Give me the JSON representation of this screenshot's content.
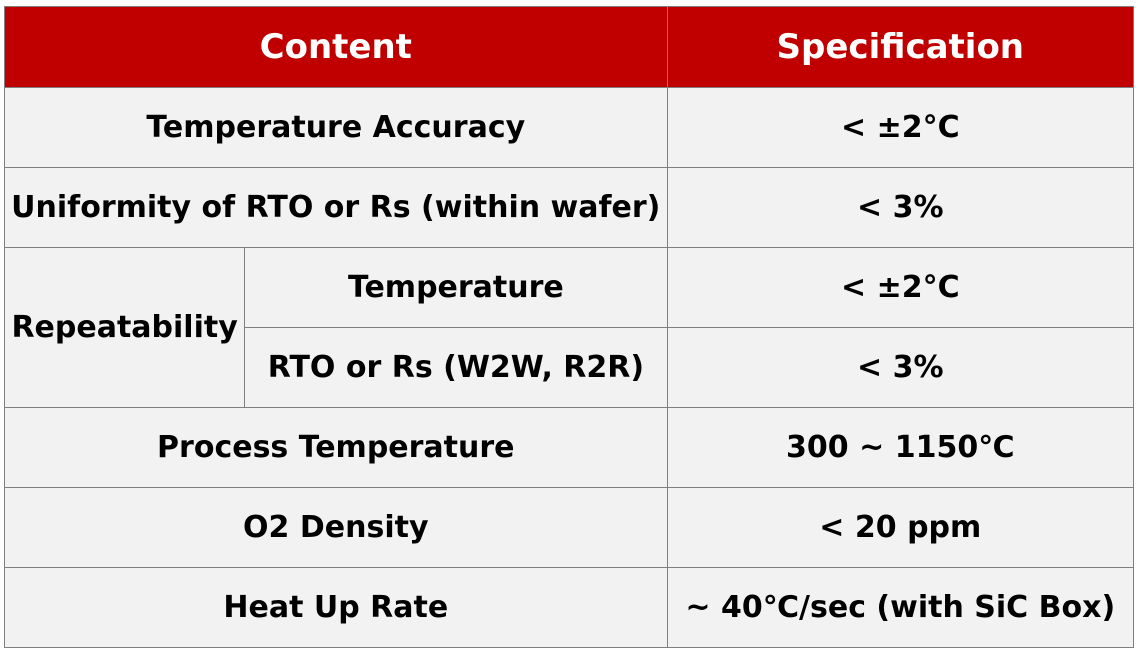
{
  "header": {
    "content_label": "Content",
    "spec_label": "Specification"
  },
  "rows": [
    {
      "content": "Temperature Accuracy",
      "spec": "< ±2°C"
    },
    {
      "content": "Uniformity of RTO or Rs (within wafer)",
      "spec": "< 3%"
    },
    {
      "group": "Repeatability",
      "sub": [
        {
          "content": "Temperature",
          "spec": "< ±2°C"
        },
        {
          "content": "RTO or Rs (W2W, R2R)",
          "spec": "< 3%"
        }
      ]
    },
    {
      "content": "Process Temperature",
      "spec": "300 ~ 1150℃"
    },
    {
      "content": "O2 Density",
      "spec": "< 20 ppm"
    },
    {
      "content": "Heat Up Rate",
      "spec": "~ 40℃/sec (with SiC Box)"
    }
  ],
  "colors": {
    "header_bg": "#c00000",
    "header_text": "#ffffff",
    "cell_bg": "#f2f2f2",
    "border": "#7f7f7f"
  }
}
